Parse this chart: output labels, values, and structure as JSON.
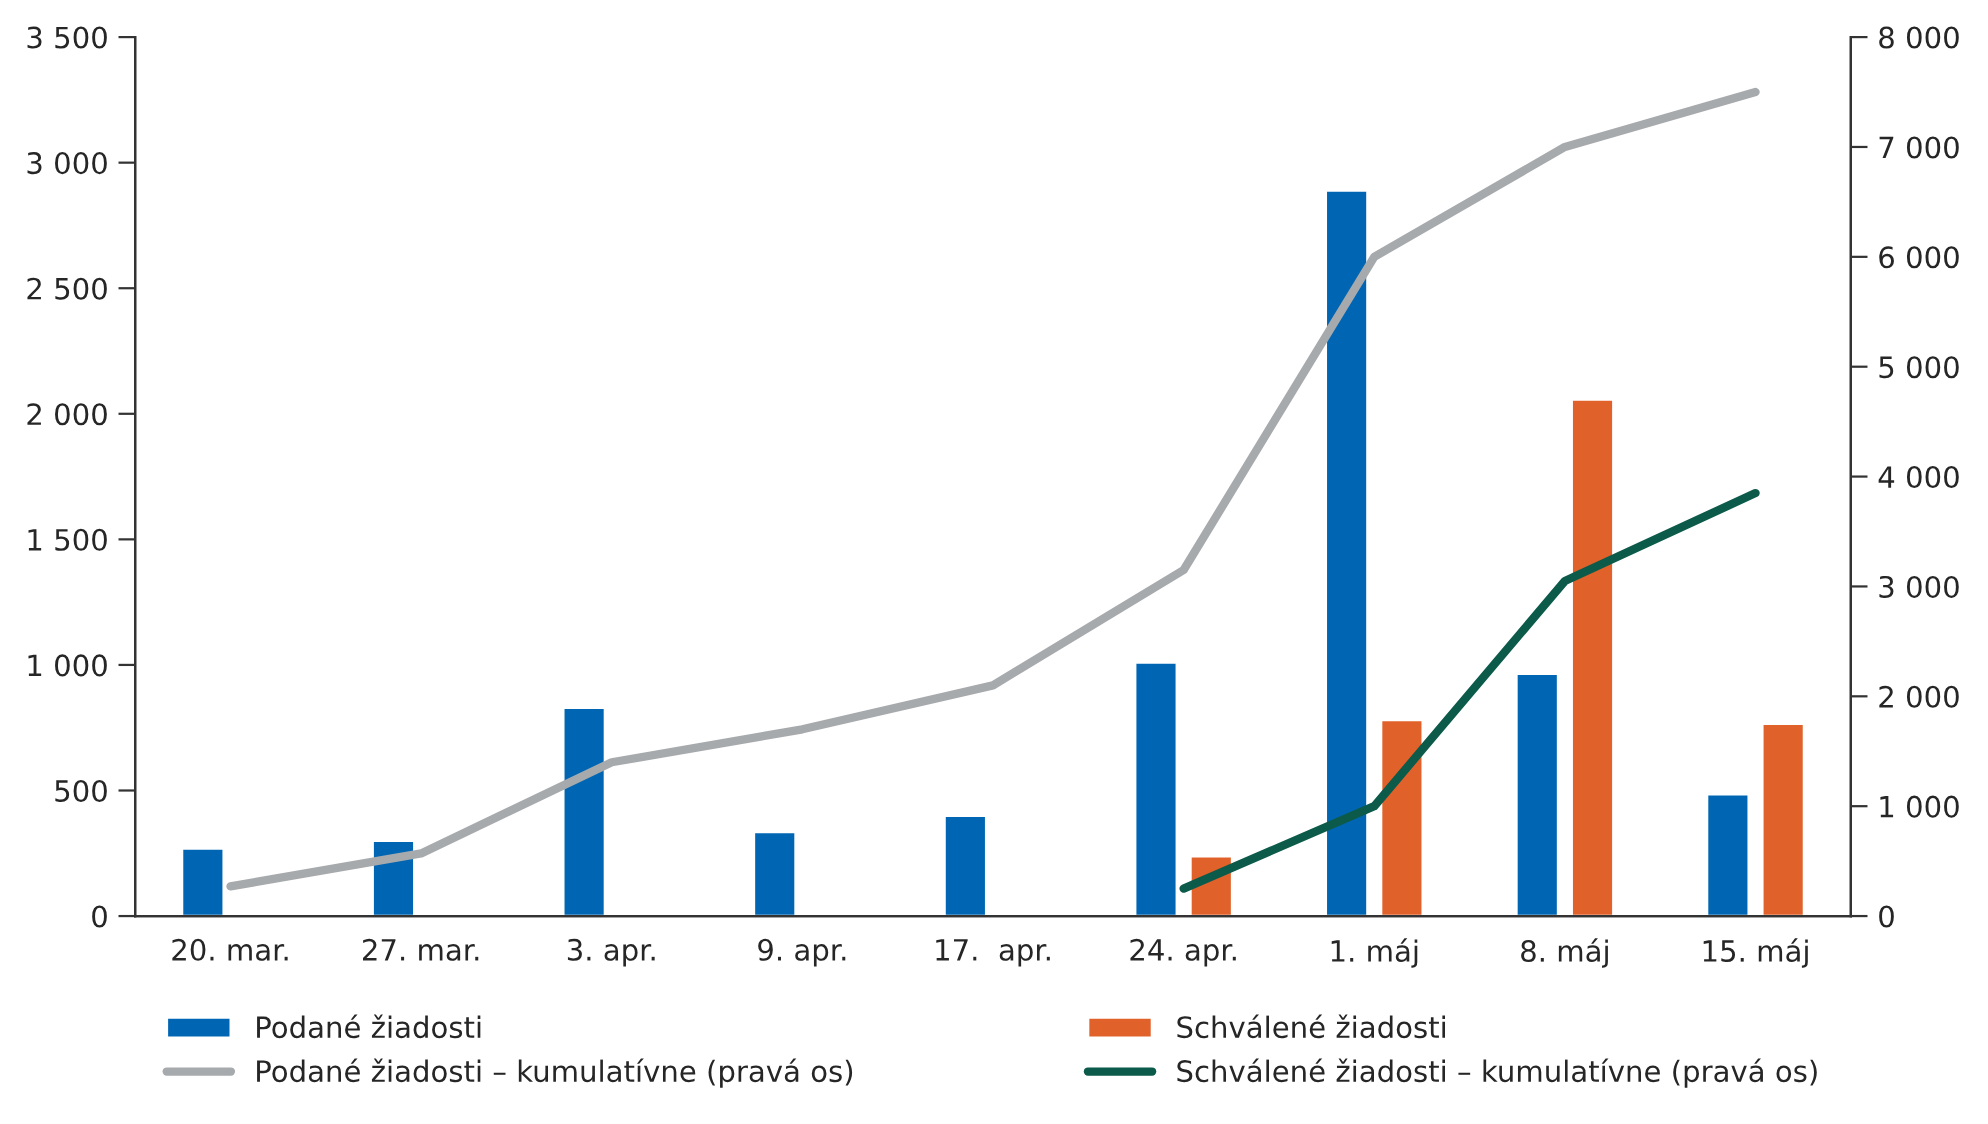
{
  "chart_data": {
    "type": "bar",
    "categories": [
      "20. mar.",
      "27. mar.",
      "3. apr.",
      "9. apr.",
      "17.  apr.",
      "24. apr.",
      "1. máj",
      "8. máj",
      "15. máj"
    ],
    "series": [
      {
        "name": "Podané žiadosti",
        "axis": "y",
        "color": "#0066b3",
        "values": [
          270,
          300,
          830,
          335,
          400,
          1010,
          2890,
          965,
          486
        ]
      },
      {
        "name": "Schválené žiadosti",
        "axis": "y",
        "color": "#e0622a",
        "values": [
          null,
          null,
          null,
          null,
          null,
          239,
          781,
          2057,
          766
        ]
      },
      {
        "name": "Podané žiadosti – kumulatívne (pravá os)",
        "type": "line",
        "axis": "y2",
        "color": "#a7aaad",
        "values": [
          270,
          570,
          1400,
          1700,
          2100,
          3150,
          6000,
          7000,
          7500
        ]
      },
      {
        "name": "Schválené žiadosti – kumulatívne (pravá os)",
        "type": "line",
        "axis": "y2",
        "color": "#0b5a4a",
        "values": [
          null,
          null,
          null,
          null,
          null,
          250,
          1000,
          3050,
          3850
        ]
      }
    ],
    "ylim": [
      0,
      3500
    ],
    "yticks": [
      0,
      500,
      {
        "value": 1000,
        "label": "1 000"
      },
      {
        "value": 1500,
        "label": "1 500"
      },
      {
        "value": 2000,
        "label": "2 000"
      },
      {
        "value": 2500,
        "label": "2 500"
      },
      {
        "value": 3000,
        "label": "3 000"
      },
      {
        "value": 3500,
        "label": "3 500"
      }
    ],
    "y2lim": [
      0,
      8000
    ],
    "y2ticks": [
      0,
      {
        "value": 1000,
        "label": "1 000"
      },
      {
        "value": 2000,
        "label": "2 000"
      },
      {
        "value": 3000,
        "label": "3 000"
      },
      {
        "value": 4000,
        "label": "4 000"
      },
      {
        "value": 5000,
        "label": "5 000"
      },
      {
        "value": 6000,
        "label": "6 000"
      },
      {
        "value": 7000,
        "label": "7 000"
      },
      {
        "value": 8000,
        "label": "8 000"
      }
    ],
    "grid": false,
    "legend": "bottom",
    "marker": "none",
    "line_style": "solid"
  }
}
